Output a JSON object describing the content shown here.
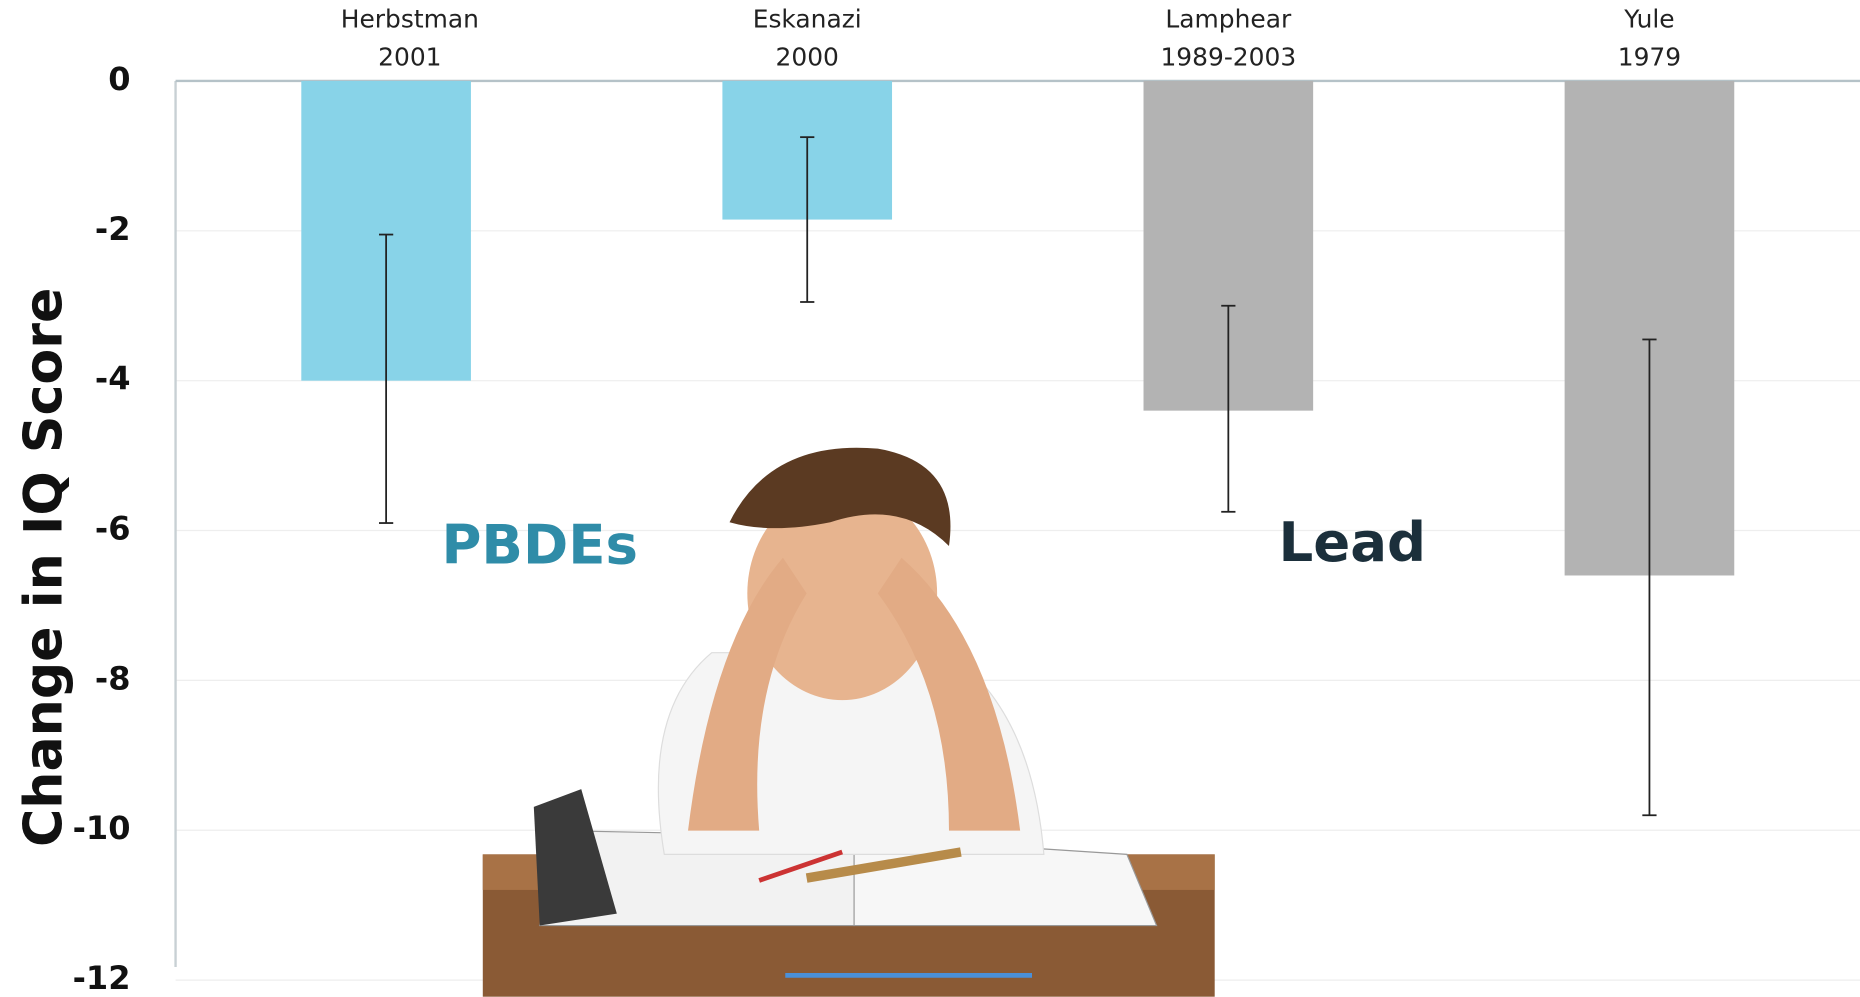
{
  "chart_data": {
    "type": "bar",
    "y_label": "Change in IQ Score",
    "categories": [
      [
        "Herbstman",
        "2001"
      ],
      [
        "Eskanazi",
        "2000"
      ],
      [
        "Lamphear",
        "1989-2003"
      ],
      [
        "Yule",
        "1979"
      ]
    ],
    "values": [
      -4.0,
      -1.85,
      -4.4,
      -6.6
    ],
    "ci_low": [
      -5.9,
      -2.95,
      -5.75,
      -9.8
    ],
    "ci_high": [
      -2.05,
      -0.75,
      -3.0,
      -3.45
    ],
    "colors": [
      "#88d3e8",
      "#88d3e8",
      "#b3b3b3",
      "#b3b3b3"
    ],
    "ylim": [
      -12,
      0
    ],
    "yticks": [
      0,
      -2,
      -4,
      -6,
      -8,
      -10,
      -12
    ],
    "grid": true,
    "annotations": [
      {
        "text": "PBDEs",
        "color": "#2f8ca8"
      },
      {
        "text": "Lead",
        "color": "#1b2f3b"
      }
    ]
  }
}
